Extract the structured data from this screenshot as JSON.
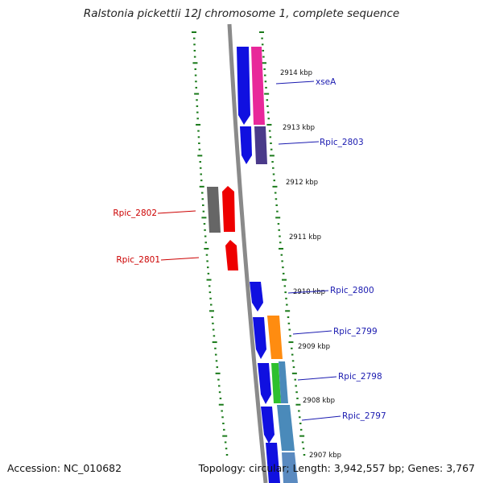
{
  "title": "Ralstonia pickettii 12J chromosome 1, complete sequence",
  "footer": {
    "accession": "Accession: NC_010682",
    "topology": "Topology: circular; Length: 3,942,557 bp; Genes: 3,767"
  },
  "colors": {
    "backbone": "#8a8a8a",
    "tick": "#1a7a1a",
    "label_forward": "#1a1ab0",
    "label_reverse": "#cc0000"
  },
  "scale_labels": [
    "2914 kbp",
    "2913 kbp",
    "2912 kbp",
    "2911 kbp",
    "2910 kbp",
    "2909 kbp",
    "2908 kbp",
    "2907 kbp"
  ],
  "gene_labels": [
    {
      "text": "xseA",
      "strand": "forward"
    },
    {
      "text": "Rpic_2803",
      "strand": "forward"
    },
    {
      "text": "Rpic_2802",
      "strand": "reverse"
    },
    {
      "text": "Rpic_2801",
      "strand": "reverse"
    },
    {
      "text": "Rpic_2800",
      "strand": "forward"
    },
    {
      "text": "Rpic_2799",
      "strand": "forward"
    },
    {
      "text": "Rpic_2798",
      "strand": "forward"
    },
    {
      "text": "Rpic_2797",
      "strand": "forward"
    }
  ]
}
